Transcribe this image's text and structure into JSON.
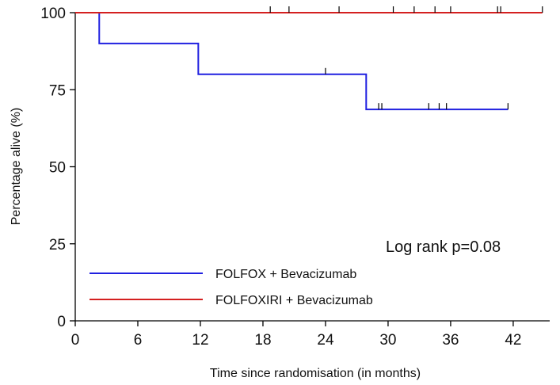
{
  "chart_data": {
    "type": "line",
    "subtype": "kaplan-meier-step",
    "title": "",
    "xlabel": "Time since randomisation (in months)",
    "ylabel": "Percentage alive (%)",
    "xlim": [
      0,
      45.5
    ],
    "ylim": [
      0,
      100
    ],
    "xticks": [
      0,
      6,
      12,
      18,
      24,
      30,
      36,
      42
    ],
    "yticks": [
      0,
      25,
      50,
      75,
      100
    ],
    "grid": false,
    "legend": "bottom-left",
    "annotation": "Log rank p=0.08",
    "series": [
      {
        "name": "FOLFOX + Bevacizumab",
        "color": "#2020e0",
        "steps": [
          {
            "x": 0,
            "y": 100
          },
          {
            "x": 2.3,
            "y": 90
          },
          {
            "x": 11.8,
            "y": 80
          },
          {
            "x": 27.9,
            "y": 68.6
          },
          {
            "x": 41.5,
            "y": 68.6
          }
        ],
        "censored": [
          {
            "x": 24.0,
            "y": 80
          },
          {
            "x": 29.1,
            "y": 68.6
          },
          {
            "x": 29.4,
            "y": 68.6
          },
          {
            "x": 33.9,
            "y": 68.6
          },
          {
            "x": 34.9,
            "y": 68.6
          },
          {
            "x": 35.6,
            "y": 68.6
          },
          {
            "x": 41.5,
            "y": 68.6
          }
        ]
      },
      {
        "name": "FOLFOXIRI + Bevacizumab",
        "color": "#d42020",
        "steps": [
          {
            "x": 0,
            "y": 100
          },
          {
            "x": 44.8,
            "y": 100
          }
        ],
        "censored": [
          {
            "x": 18.7,
            "y": 100
          },
          {
            "x": 20.5,
            "y": 100
          },
          {
            "x": 25.3,
            "y": 100
          },
          {
            "x": 30.5,
            "y": 100
          },
          {
            "x": 32.5,
            "y": 100
          },
          {
            "x": 34.5,
            "y": 100
          },
          {
            "x": 36.0,
            "y": 100
          },
          {
            "x": 40.5,
            "y": 100
          },
          {
            "x": 40.8,
            "y": 100
          },
          {
            "x": 44.8,
            "y": 100
          }
        ]
      }
    ]
  }
}
